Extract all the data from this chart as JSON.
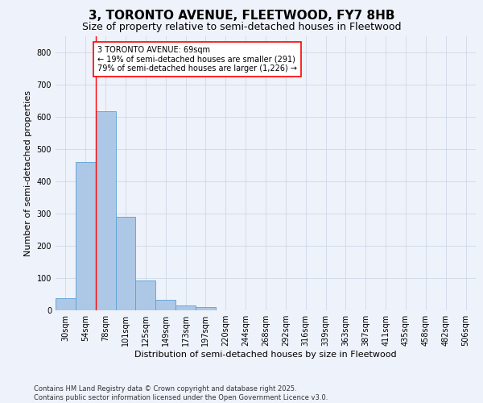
{
  "title": "3, TORONTO AVENUE, FLEETWOOD, FY7 8HB",
  "subtitle": "Size of property relative to semi-detached houses in Fleetwood",
  "xlabel": "Distribution of semi-detached houses by size in Fleetwood",
  "ylabel": "Number of semi-detached properties",
  "categories": [
    "30sqm",
    "54sqm",
    "78sqm",
    "101sqm",
    "125sqm",
    "149sqm",
    "173sqm",
    "197sqm",
    "220sqm",
    "244sqm",
    "268sqm",
    "292sqm",
    "316sqm",
    "339sqm",
    "363sqm",
    "387sqm",
    "411sqm",
    "435sqm",
    "458sqm",
    "482sqm",
    "506sqm"
  ],
  "values": [
    38,
    461,
    617,
    289,
    93,
    32,
    15,
    9,
    0,
    0,
    0,
    0,
    0,
    0,
    0,
    0,
    0,
    0,
    0,
    0,
    0
  ],
  "bar_color": "#adc8e6",
  "bar_edge_color": "#5a9fd4",
  "grid_color": "#d0d8e8",
  "background_color": "#eef2fa",
  "vline_x": 1.5,
  "vline_color": "red",
  "annotation_text": "3 TORONTO AVENUE: 69sqm\n← 19% of semi-detached houses are smaller (291)\n79% of semi-detached houses are larger (1,226) →",
  "annotation_box_color": "white",
  "annotation_box_edge_color": "red",
  "ylim": [
    0,
    850
  ],
  "yticks": [
    0,
    100,
    200,
    300,
    400,
    500,
    600,
    700,
    800
  ],
  "footer": "Contains HM Land Registry data © Crown copyright and database right 2025.\nContains public sector information licensed under the Open Government Licence v3.0.",
  "title_fontsize": 11,
  "subtitle_fontsize": 9,
  "axis_label_fontsize": 8,
  "tick_fontsize": 7,
  "annotation_fontsize": 7,
  "footer_fontsize": 6
}
